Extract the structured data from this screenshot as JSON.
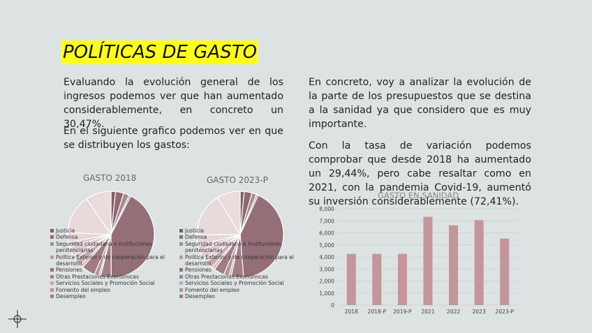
{
  "slide": {
    "title": "POLÍTICAS DE GASTO",
    "left_para_1": "Evaluando la evolución general de los ingresos  podemos ver que han aumentado considerablemente, en concreto un 30,47%.",
    "left_para_2": "En el siguiente grafico podemos ver en que se distribuyen los gastos:",
    "right_para_1": "En concreto, voy a analizar la evolución de la parte de los presupuestos que se destina a la sanidad ya que considero que es muy importante.",
    "right_para_2": "Con la tasa de variación podemos comprobar que desde 2018 ha aumentado un 29,44%, pero cabe resaltar como en 2021, con la pandemia Covid-19, aumentó su inversión considerablemente (72,41%)."
  },
  "colors": {
    "bar": "#c4959b",
    "highlight": "#ffff1a",
    "background": "#dde3e2"
  },
  "chart_data": [
    {
      "type": "pie",
      "title": "GASTO 2018",
      "categories": [
        "Justicia",
        "Defensa",
        "Seguridad ciudadana e Instituciones penitenciarias",
        "Política Exterior y de cooperación para el desarrollo",
        "Pensiones",
        "Otras Prestaciones Económicas",
        "Servicios Sociales y Promoción Social",
        "Fomento del empleo",
        "Desempleo"
      ],
      "legend_labels": [
        "Justicia",
        "Defensa",
        "Seguridad ciudadana e Instituciones",
        "penitenciarias",
        "Política Exterior y de cooperación para el",
        "desarrollo",
        "Pensiones",
        "Otras Prestaciones Económicas",
        "Servicios Sociales y Promoción Social",
        "Fomento del empleo",
        "Desempleo"
      ],
      "slices": [
        {
          "label": "Justicia",
          "value": 1.5,
          "color": "#7e5f66"
        },
        {
          "label": "Defensa",
          "value": 2.7,
          "color": "#8d6a71"
        },
        {
          "label": "Seguridad ciudadana e Instituciones penitenciarias",
          "value": 1.9,
          "color": "#a88a8f"
        },
        {
          "label": "Política Exterior y de cooperación para el desarrollo",
          "value": 0.6,
          "color": "#b99da1"
        },
        {
          "label": "Pensiones",
          "value": 37.5,
          "color": "#956f77"
        },
        {
          "label": "Otras Prestaciones Económicas",
          "value": 3.5,
          "color": "#a27f86"
        },
        {
          "label": "Servicios Sociales y Promoción Social",
          "value": 0.6,
          "color": "#c4a9ad"
        },
        {
          "label": "Fomento del empleo",
          "value": 1.5,
          "color": "#b89399"
        },
        {
          "label": "Desempleo",
          "value": 4.5,
          "color": "#a07c83"
        },
        {
          "label": "",
          "value": 1.0,
          "color": "#d4b8bc"
        },
        {
          "label": "",
          "value": 2.5,
          "color": "#c8aaaf"
        },
        {
          "label": "",
          "value": 1.4,
          "color": "#dcc6c9"
        },
        {
          "label": "",
          "value": 3.0,
          "color": "#e0cdd0"
        },
        {
          "label": "",
          "value": 1.6,
          "color": "#ddc6c9"
        },
        {
          "label": "",
          "value": 3.2,
          "color": "#e6d6d8"
        },
        {
          "label": "",
          "value": 13.0,
          "color": "#e8d9db"
        },
        {
          "label": "",
          "value": 8.5,
          "color": "#eadbdd"
        }
      ]
    },
    {
      "type": "pie",
      "title": "GASTO 2023-P",
      "categories": [
        "Justicia",
        "Defensa",
        "Seguridad ciudadana e Instituciones penitenciarias",
        "Política Exterior y de cooperación para el desarrollo",
        "Pensiones",
        "Otras Prestaciones Económicas",
        "Servicios Sociales y Promoción Social",
        "Fomento del empleo",
        "Desempleo"
      ],
      "legend_labels": [
        "Justicia",
        "Defensa",
        "Seguridad ciudadana e Instituciones",
        "penitenciarias",
        "Política Exterior y de cooperación para el",
        "desarrollo",
        "Pensiones",
        "Otras Prestaciones Económicas",
        "Servicios Sociales y Promoción Social",
        "Fomento del empleo",
        "Desempleo"
      ],
      "slices": [
        {
          "label": "Justicia",
          "value": 1.3,
          "color": "#7e5f66"
        },
        {
          "label": "Defensa",
          "value": 2.5,
          "color": "#8d6a71"
        },
        {
          "label": "Seguridad ciudadana e Instituciones penitenciarias",
          "value": 1.5,
          "color": "#a88a8f"
        },
        {
          "label": "Política Exterior y de cooperación para el desarrollo",
          "value": 0.6,
          "color": "#b99da1"
        },
        {
          "label": "Pensiones",
          "value": 36.0,
          "color": "#956f77"
        },
        {
          "label": "Otras Prestaciones Económicas",
          "value": 4.0,
          "color": "#a27f86"
        },
        {
          "label": "Servicios Sociales y Promoción Social",
          "value": 0.7,
          "color": "#c4a9ad"
        },
        {
          "label": "Fomento del empleo",
          "value": 1.7,
          "color": "#b89399"
        },
        {
          "label": "Desempleo",
          "value": 3.4,
          "color": "#a07c83"
        },
        {
          "label": "",
          "value": 1.0,
          "color": "#d4b8bc"
        },
        {
          "label": "",
          "value": 2.5,
          "color": "#c8aaaf"
        },
        {
          "label": "",
          "value": 1.2,
          "color": "#dcc6c9"
        },
        {
          "label": "",
          "value": 3.0,
          "color": "#e0cdd0"
        },
        {
          "label": "",
          "value": 1.6,
          "color": "#ddc6c9"
        },
        {
          "label": "",
          "value": 3.5,
          "color": "#e6d6d8"
        },
        {
          "label": "",
          "value": 14.0,
          "color": "#e8d9db"
        },
        {
          "label": "",
          "value": 7.5,
          "color": "#eadbdd"
        }
      ]
    },
    {
      "type": "bar",
      "title": "GASTO EN SANIDAD",
      "categories": [
        "2018",
        "2018-P",
        "2019-P",
        "2021",
        "2022",
        "2023",
        "2023-P"
      ],
      "values": [
        4250,
        4250,
        4250,
        7330,
        6620,
        7050,
        5520
      ],
      "ylim": [
        0,
        8000
      ],
      "yticks": [
        0,
        1000,
        2000,
        3000,
        4000,
        5000,
        6000,
        7000,
        8000
      ],
      "ytick_labels": [
        "0",
        "1,000",
        "2,000",
        "3,000",
        "4,000",
        "5,000",
        "6,000",
        "7,000",
        "8,000"
      ],
      "grid": true,
      "xlabel": "",
      "ylabel": ""
    }
  ]
}
